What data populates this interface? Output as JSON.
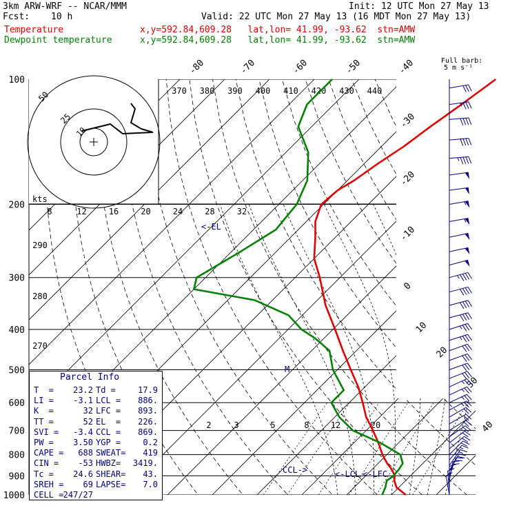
{
  "header": {
    "model": "3km ARW-WRF -- NCAR/MMM",
    "init": "Init: 12 UTC Mon 27 May 13",
    "fcst_label": "Fcst:",
    "fcst_value": "10 h",
    "valid": "Valid: 22 UTC Mon 27 May 13 (16 MDT Mon 27 May 13)",
    "temp_label": "Temperature",
    "temp_info": "x,y=592.84,609.28   lat,lon= 41.99, -93.62  stn=AMW",
    "dew_label": "Dewpoint temperature",
    "dew_info": "x,y=592.84,609.28   lat,lon= 41.99, -93.62  stn=AMW"
  },
  "barb_legend": {
    "title": "Full barb:",
    "value": "5 m s⁻¹"
  },
  "parcel_info": {
    "title": "Parcel Info",
    "rows": [
      [
        "T  =",
        "23.2",
        "Td =",
        "17.9"
      ],
      [
        "LI =",
        "-3.1",
        "LCL =",
        "886."
      ],
      [
        "K  =",
        "32",
        "LFC =",
        "893."
      ],
      [
        "TT =",
        "52",
        "EL  =",
        "226."
      ],
      [
        "SVI =",
        "-3.4",
        "CCL =",
        "869."
      ],
      [
        "PW =",
        "3.50",
        "YGP =",
        "0.2"
      ],
      [
        "CAPE =",
        "688",
        "SWEAT=",
        "419"
      ],
      [
        "CIN =",
        "-53",
        "HWBZ=",
        "3419."
      ],
      [
        "Tc =",
        "24.6",
        "SHEAR=",
        "43."
      ],
      [
        "SREH =",
        "69",
        "LAPSE=",
        "7.0"
      ],
      [
        "CELL =",
        "247/27",
        "",
        ""
      ]
    ]
  },
  "colors": {
    "temperature": "#e00000",
    "dewpoint": "#008000",
    "labels": "#000080",
    "barbs": "#000080"
  },
  "chart_data": {
    "type": "line",
    "yscale": "log",
    "ylabel": "",
    "y_ticks": [
      100,
      200,
      300,
      400,
      500,
      600,
      700,
      800,
      900,
      1000
    ],
    "isotherm_labels": [
      -80,
      -70,
      -60,
      -50,
      -40,
      -30,
      -20,
      -10,
      0,
      10,
      20,
      30,
      40
    ],
    "theta_labels": [
      370,
      380,
      390,
      400,
      410,
      420,
      430,
      440
    ],
    "theta_left_labels": [
      290,
      280,
      270
    ],
    "mixing_ratio_labels": [
      2,
      3,
      5,
      8,
      12,
      20
    ],
    "levels": [
      "EL",
      "CCL",
      "LCL",
      "LFC",
      "M"
    ],
    "hodograph": {
      "unit_label": "kts",
      "axis_labels": [
        8,
        12,
        16,
        20,
        24,
        28,
        32
      ],
      "ring_labels": [
        50,
        25,
        10
      ]
    },
    "series": [
      {
        "name": "Temperature",
        "p": [
          1000,
          960,
          925,
          900,
          870,
          840,
          800,
          750,
          700,
          650,
          600,
          550,
          500,
          450,
          400,
          350,
          300,
          270,
          240,
          220,
          200,
          185,
          175,
          160,
          145,
          130,
          115,
          100
        ],
        "t": [
          23.2,
          19.5,
          17.5,
          16.5,
          14.5,
          12.0,
          9.0,
          5.5,
          1.5,
          -3.0,
          -7.0,
          -11.5,
          -17.0,
          -23.0,
          -29.5,
          -37.0,
          -44.5,
          -50.0,
          -54.5,
          -58.0,
          -60.5,
          -60.0,
          -58.5,
          -57.0,
          -55.0,
          -53.5,
          -51.5,
          -49.5
        ]
      },
      {
        "name": "Dewpoint temperature",
        "p": [
          1000,
          960,
          925,
          900,
          870,
          840,
          800,
          750,
          700,
          650,
          600,
          560,
          500,
          450,
          420,
          400,
          370,
          340,
          320,
          300,
          260,
          230,
          200,
          175,
          150,
          130,
          115,
          100
        ],
        "t": [
          17.9,
          17.0,
          15.8,
          16.2,
          16.0,
          15.5,
          13.0,
          6.0,
          -3.0,
          -9.0,
          -14.0,
          -14.0,
          -21.0,
          -26.0,
          -32.0,
          -37.0,
          -43.0,
          -54.0,
          -70.0,
          -72.0,
          -68.0,
          -65.0,
          -66.0,
          -69.0,
          -75.0,
          -83.0,
          -86.0,
          -86.0
        ]
      }
    ],
    "wind_barbs": {
      "p": [
        1000,
        975,
        950,
        925,
        900,
        875,
        850,
        825,
        800,
        775,
        750,
        725,
        700,
        675,
        650,
        625,
        600,
        575,
        550,
        525,
        500,
        475,
        450,
        425,
        400,
        375,
        350,
        325,
        300,
        280,
        260,
        240,
        220,
        200,
        185,
        170,
        155,
        140,
        125,
        115,
        105
      ],
      "dir": [
        170,
        175,
        180,
        190,
        200,
        210,
        215,
        220,
        225,
        230,
        232,
        235,
        238,
        240,
        240,
        242,
        245,
        245,
        245,
        248,
        250,
        250,
        250,
        252,
        252,
        255,
        255,
        255,
        255,
        255,
        258,
        258,
        260,
        260,
        262,
        262,
        265,
        265,
        265,
        262,
        260
      ],
      "spd": [
        6,
        8,
        9,
        10,
        10,
        10,
        9,
        9,
        10,
        10,
        11,
        11,
        12,
        12,
        12,
        13,
        13,
        14,
        14,
        15,
        16,
        16,
        17,
        18,
        19,
        20,
        21,
        22,
        24,
        25,
        26,
        27,
        28,
        29,
        27,
        25,
        24,
        22,
        20,
        18,
        16
      ]
    }
  }
}
